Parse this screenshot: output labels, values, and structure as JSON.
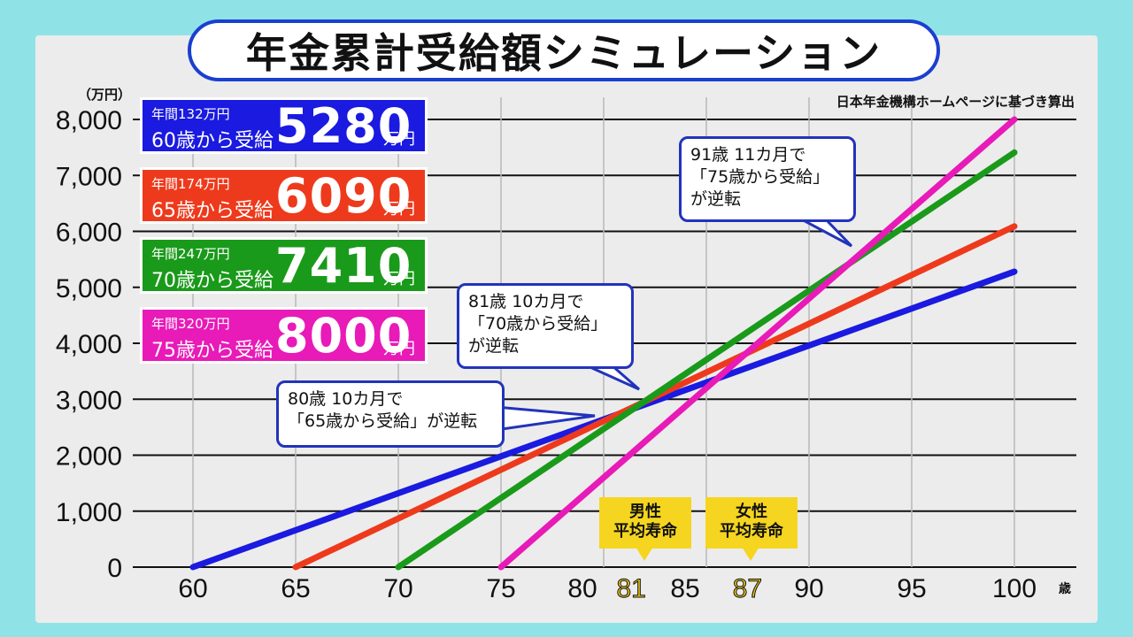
{
  "title": "年金累計受給額シミュレーション",
  "source_note": "日本年金機構ホームページに基づき算出",
  "y_unit": "（万円）",
  "x_unit": "歳",
  "legend": [
    {
      "annual": "年間132万円",
      "start": "60歳から受給",
      "total": "5280",
      "unit": "万円",
      "color": "#1a1ae0"
    },
    {
      "annual": "年間174万円",
      "start": "65歳から受給",
      "total": "6090",
      "unit": "万円",
      "color": "#ee3a1c"
    },
    {
      "annual": "年間247万円",
      "start": "70歳から受給",
      "total": "7410",
      "unit": "万円",
      "color": "#1a9a1a"
    },
    {
      "annual": "年間320万円",
      "start": "75歳から受給",
      "total": "8000",
      "unit": "万円",
      "color": "#e81ab8"
    }
  ],
  "callouts": [
    {
      "lines": [
        "91歳 11カ月で",
        "「75歳から受給」",
        "が逆転"
      ]
    },
    {
      "lines": [
        "81歳 10カ月で",
        "「70歳から受給」",
        "が逆転"
      ]
    },
    {
      "lines": [
        "80歳 10カ月で",
        "「65歳から受給」が逆転"
      ]
    }
  ],
  "life_expectancy": [
    {
      "label_line1": "男性",
      "label_line2": "平均寿命",
      "age": "81"
    },
    {
      "label_line1": "女性",
      "label_line2": "平均寿命",
      "age": "87"
    }
  ],
  "chart_data": {
    "type": "line",
    "title": "年金累計受給額シミュレーション",
    "xlabel": "歳",
    "ylabel": "万円",
    "xlim": [
      60,
      100
    ],
    "ylim": [
      0,
      8000
    ],
    "x_ticks": [
      "60",
      "65",
      "70",
      "75",
      "80",
      "85",
      "90",
      "95",
      "100"
    ],
    "x_highlight_ticks": [
      "81",
      "87"
    ],
    "y_ticks": [
      "0",
      "1,000",
      "2,000",
      "3,000",
      "4,000",
      "5,000",
      "6,000",
      "7,000",
      "8,000"
    ],
    "grid": true,
    "series": [
      {
        "name": "60歳から受給",
        "color": "#1a1ae0",
        "points": [
          [
            60,
            0
          ],
          [
            100,
            5280
          ]
        ]
      },
      {
        "name": "65歳から受給",
        "color": "#ee3a1c",
        "points": [
          [
            65,
            0
          ],
          [
            100,
            6090
          ]
        ]
      },
      {
        "name": "70歳から受給",
        "color": "#1a9a1a",
        "points": [
          [
            70,
            0
          ],
          [
            100,
            7410
          ]
        ]
      },
      {
        "name": "75歳から受給",
        "color": "#e81ab8",
        "points": [
          [
            75,
            0
          ],
          [
            100,
            8000
          ]
        ]
      }
    ]
  }
}
